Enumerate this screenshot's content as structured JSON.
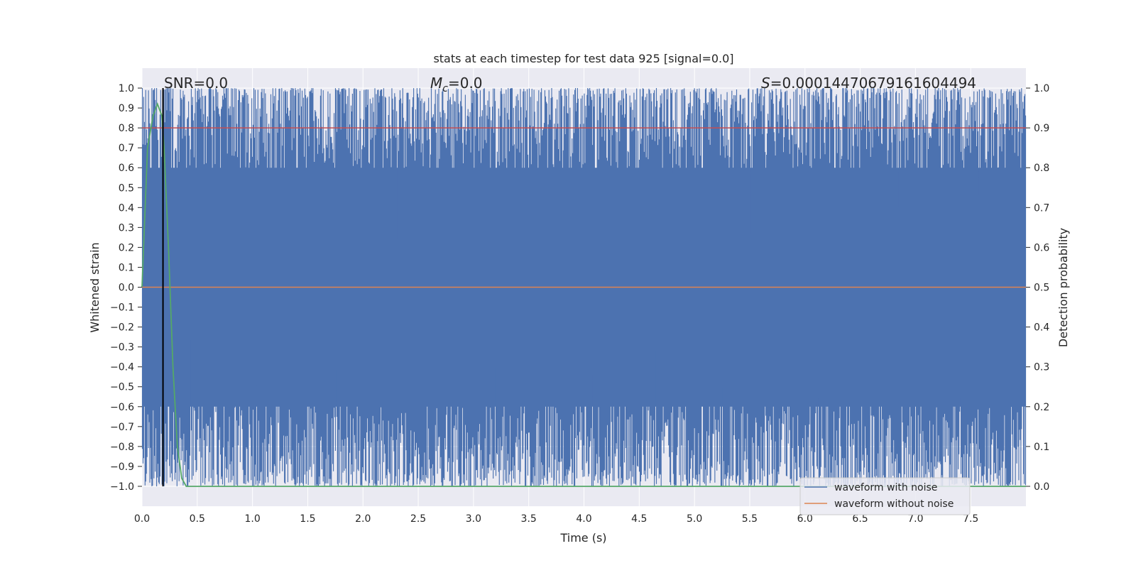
{
  "chart_data": {
    "type": "line",
    "title": "stats at each timestep for test data 925 [signal=0.0]",
    "xlabel": "Time (s)",
    "ylabel_left": "Whitened strain",
    "ylabel_right": "Detection probability",
    "xlim": [
      0.0,
      8.0
    ],
    "ylim_left": [
      -1.1,
      1.1
    ],
    "ylim_right": [
      -0.05,
      1.05
    ],
    "x_ticks": [
      "0.0",
      "0.5",
      "1.0",
      "1.5",
      "2.0",
      "2.5",
      "3.0",
      "3.5",
      "4.0",
      "4.5",
      "5.0",
      "5.5",
      "6.0",
      "6.5",
      "7.0",
      "7.5"
    ],
    "y_left_ticks": [
      "1.0",
      "0.9",
      "0.8",
      "0.7",
      "0.6",
      "0.5",
      "0.4",
      "0.3",
      "0.2",
      "0.1",
      "0.0",
      "−0.1",
      "−0.2",
      "−0.3",
      "−0.4",
      "−0.5",
      "−0.6",
      "−0.7",
      "−0.8",
      "−0.9",
      "−1.0"
    ],
    "y_right_ticks": [
      "1.0",
      "0.9",
      "0.8",
      "0.7",
      "0.6",
      "0.5",
      "0.4",
      "0.3",
      "0.2",
      "0.1",
      "0.0"
    ],
    "grid": true,
    "legend_position": "bottom-right",
    "series": [
      {
        "name": "waveform with noise",
        "color": "#4c72b0",
        "axis": "left",
        "description_values": "dense noise clipped to [-1.0, 1.0] over 0.0-8.0 s"
      },
      {
        "name": "waveform without noise",
        "color": "#dd8452",
        "axis": "left",
        "values_x": [
          0.0,
          8.0
        ],
        "values_y": [
          0.0,
          0.0
        ]
      },
      {
        "color": "#55a868",
        "axis": "right",
        "x": [
          0.0,
          0.05,
          0.1,
          0.14,
          0.18,
          0.2,
          0.24,
          0.28,
          0.32,
          0.36,
          0.4,
          8.0
        ],
        "y": [
          0.5,
          0.85,
          0.93,
          0.96,
          0.93,
          0.85,
          0.6,
          0.3,
          0.1,
          0.02,
          0.0,
          0.0
        ]
      }
    ],
    "horizontal_line": {
      "axis": "right",
      "value": 0.9,
      "color": "#c44e52"
    },
    "vertical_line": {
      "x": 0.19,
      "color": "#000000"
    },
    "annotations": {
      "snr": "SNR=0.0",
      "mc_symbol": "M",
      "mc_sub": "c",
      "mc_value": "=0.0",
      "s_symbol": "S",
      "s_value": "=0.00014470679161604494"
    },
    "legend": [
      "waveform with noise",
      "waveform without noise"
    ],
    "colors": {
      "background": "#eaeaf2",
      "grid": "#ffffff",
      "noisy": "#4c72b0",
      "clean": "#dd8452",
      "prob": "#55a868",
      "threshold": "#c44e52"
    }
  }
}
